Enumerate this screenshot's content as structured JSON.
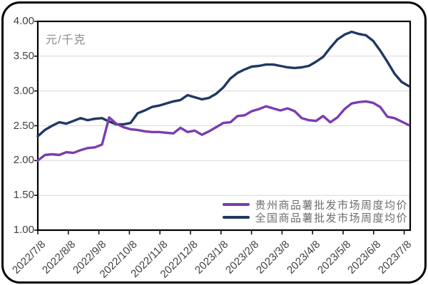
{
  "chart_data": {
    "type": "line",
    "title": "",
    "unit_label": "元/千克",
    "ylim": [
      1.0,
      4.0
    ],
    "ytick_step": 0.5,
    "ytick_labels": [
      "4.00",
      "3.50",
      "3.00",
      "2.50",
      "2.00",
      "1.50",
      "1.00"
    ],
    "x_tick_labels": [
      "2022/7/8",
      "2022/8/8",
      "2022/9/8",
      "2022/10/8",
      "2022/11/8",
      "2022/12/8",
      "2023/1/8",
      "2023/2/8",
      "2023/3/8",
      "2023/4/8",
      "2023/5/8",
      "2023/6/8",
      "2023/7/8"
    ],
    "grid": true,
    "legend_position": "bottom-right",
    "series": [
      {
        "name": "贵州商品薯批发市场周度均价",
        "color": "#7b3cb0",
        "values": [
          2.0,
          2.08,
          2.09,
          2.08,
          2.12,
          2.11,
          2.15,
          2.18,
          2.19,
          2.23,
          2.62,
          2.53,
          2.48,
          2.45,
          2.44,
          2.42,
          2.41,
          2.41,
          2.4,
          2.39,
          2.47,
          2.41,
          2.43,
          2.37,
          2.42,
          2.48,
          2.54,
          2.55,
          2.64,
          2.65,
          2.71,
          2.74,
          2.78,
          2.75,
          2.72,
          2.75,
          2.71,
          2.61,
          2.58,
          2.57,
          2.64,
          2.55,
          2.62,
          2.74,
          2.82,
          2.84,
          2.85,
          2.83,
          2.77,
          2.63,
          2.61,
          2.56,
          2.51
        ]
      },
      {
        "name": "全国商品薯批发市场周度均价",
        "color": "#1f3864",
        "values": [
          2.35,
          2.44,
          2.5,
          2.55,
          2.53,
          2.57,
          2.61,
          2.58,
          2.6,
          2.61,
          2.56,
          2.52,
          2.52,
          2.54,
          2.68,
          2.72,
          2.77,
          2.79,
          2.82,
          2.85,
          2.87,
          2.94,
          2.91,
          2.88,
          2.9,
          2.96,
          3.05,
          3.18,
          3.26,
          3.31,
          3.35,
          3.36,
          3.38,
          3.38,
          3.36,
          3.34,
          3.33,
          3.34,
          3.36,
          3.42,
          3.49,
          3.62,
          3.74,
          3.81,
          3.85,
          3.82,
          3.8,
          3.72,
          3.58,
          3.42,
          3.25,
          3.13,
          3.07
        ]
      }
    ]
  }
}
